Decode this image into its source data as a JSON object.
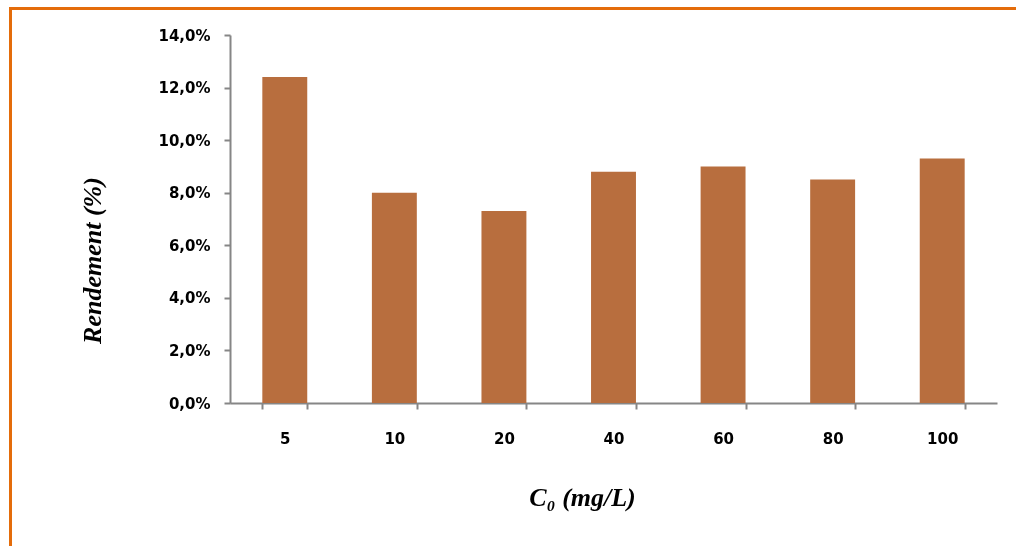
{
  "chart_data": {
    "type": "bar",
    "categories": [
      "5",
      "10",
      "20",
      "40",
      "60",
      "80",
      "100"
    ],
    "values": [
      12.4,
      8.0,
      7.3,
      8.8,
      9.0,
      8.5,
      9.3
    ],
    "color": "#b86e3e",
    "xlabel": "C₀ (mg/L)",
    "ylabel": "Rendement (%)",
    "ylim": [
      0,
      14
    ],
    "yticks": [
      {
        "value": 0,
        "label": "0,0%"
      },
      {
        "value": 2,
        "label": "2,0%"
      },
      {
        "value": 4,
        "label": "4,0%"
      },
      {
        "value": 6,
        "label": "6,0%"
      },
      {
        "value": 8,
        "label": "8,0%"
      },
      {
        "value": 10,
        "label": "10,0%"
      },
      {
        "value": 12,
        "label": "12,0%"
      },
      {
        "value": 14,
        "label": "14,0%"
      }
    ]
  }
}
